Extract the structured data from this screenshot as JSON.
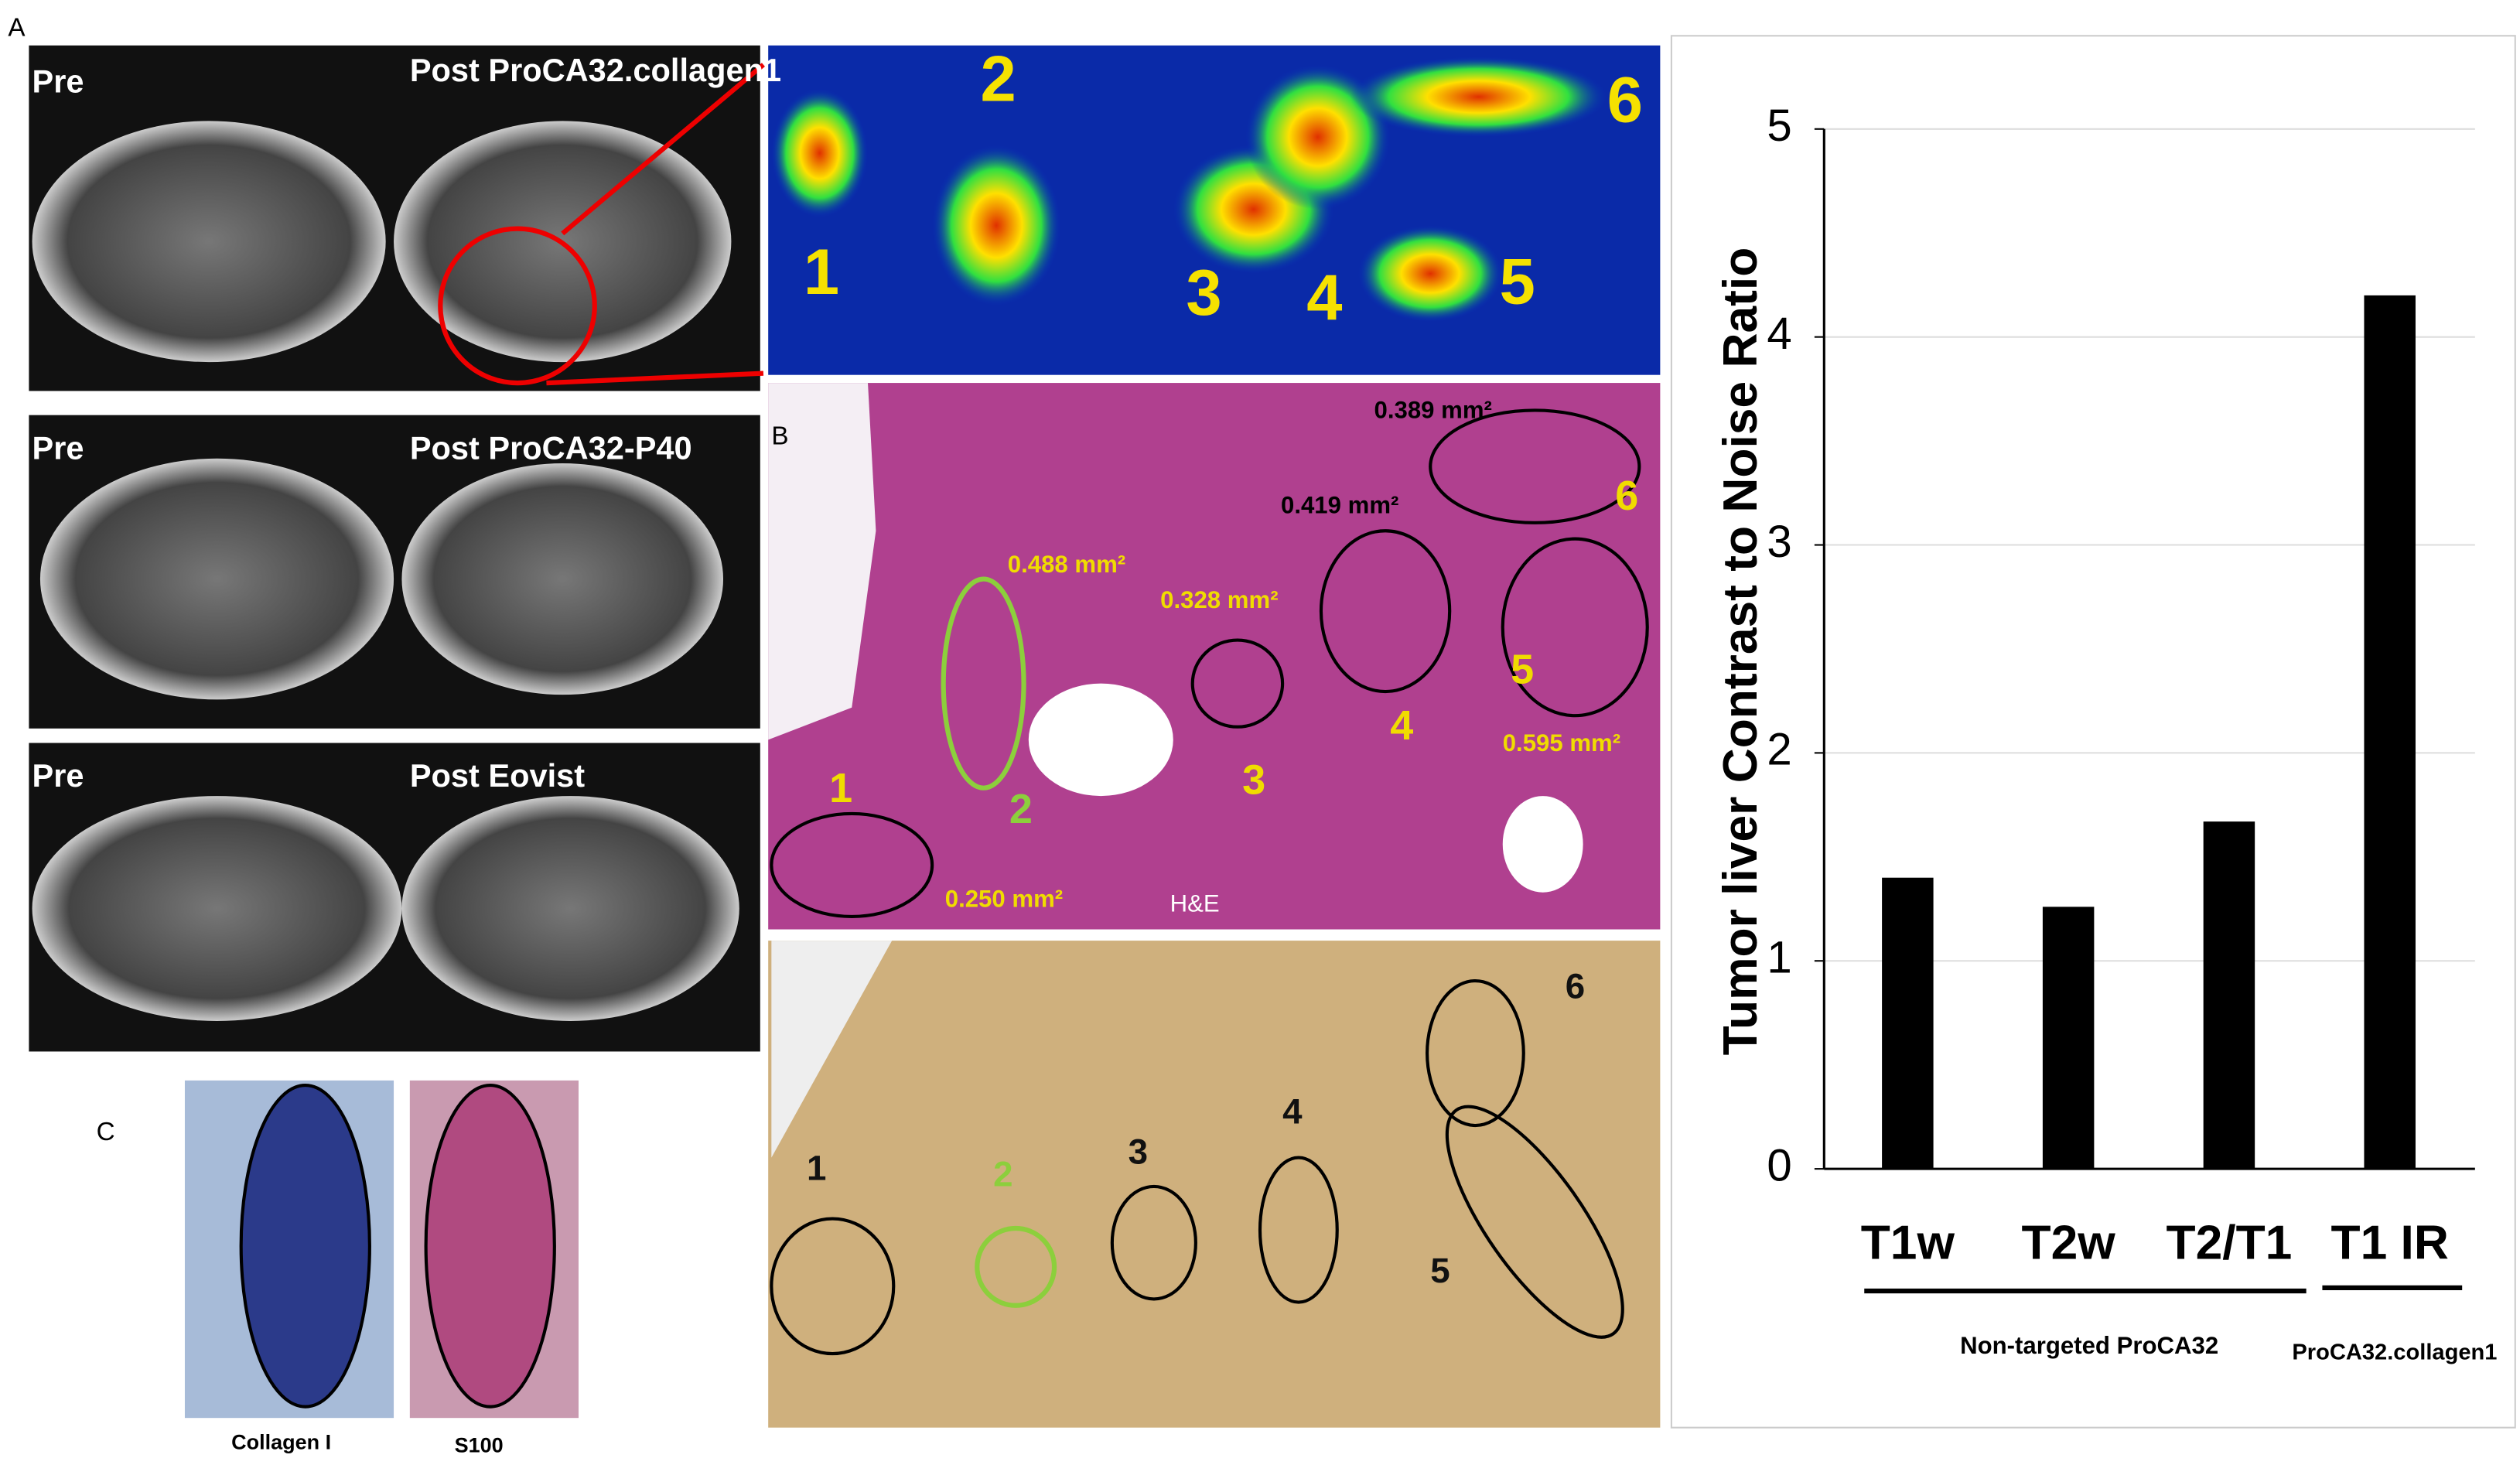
{
  "figure": {
    "panel_labels": [
      "A",
      "B",
      "C"
    ],
    "mri_labels": [
      "Pre",
      "Post ProCA32.collagen1",
      "Pre",
      "Post ProCA32-P40",
      "Pre",
      "Post Eovist"
    ],
    "heatmap_numbers": [
      "1",
      "2",
      "3",
      "4",
      "5",
      "6"
    ],
    "he_numbers": [
      "1",
      "2",
      "3",
      "4",
      "5",
      "6"
    ],
    "he_areas": [
      "0.488 mm²",
      "0.328 mm²",
      "0.419 mm²",
      "0.389 mm²",
      "0.595 mm²",
      "0.250 mm²"
    ],
    "he_stain": "H&E",
    "sirius_numbers": [
      "1",
      "2",
      "3",
      "4",
      "5",
      "6"
    ],
    "ihc_labels": [
      "Collagen I",
      "S100"
    ]
  },
  "chart_data": {
    "type": "bar",
    "y_label": "Tumor liver Contrast to Noise Ratio",
    "categories": [
      "T1w",
      "T2w",
      "T2/T1",
      "T1 IR"
    ],
    "values": [
      1.4,
      1.26,
      1.67,
      4.2
    ],
    "color": "#000000",
    "groups": [
      "Non-targeted ProCA32",
      "ProCA32.collagen1"
    ],
    "ylim": [
      0,
      5
    ],
    "yticks": [
      0,
      1,
      2,
      3,
      4,
      5
    ],
    "grid": true
  }
}
